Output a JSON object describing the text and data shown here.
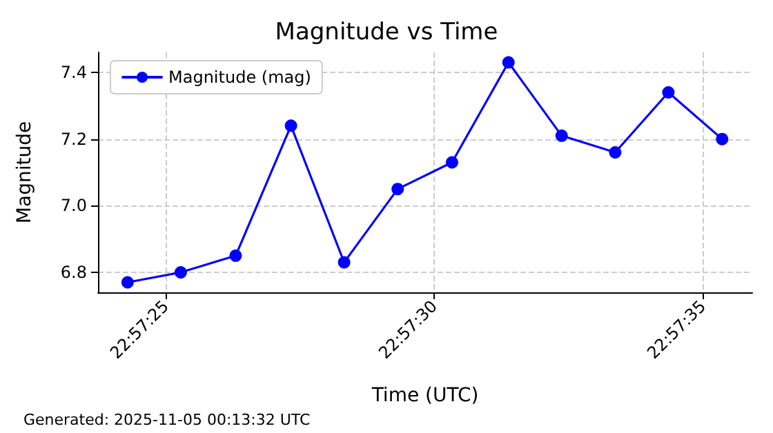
{
  "chart_data": {
    "type": "line",
    "title": "Magnitude vs Time",
    "xlabel": "Time (UTC)",
    "ylabel": "Magnitude",
    "annotations": [
      "Generated: 2025-11-05 00:13:32 UTC"
    ],
    "x": [
      22.956747,
      22.957022,
      22.957306,
      22.957592,
      22.957867,
      22.958144,
      22.958425,
      22.958717,
      22.958992,
      22.959269,
      22.959544,
      22.959822
    ],
    "series": [
      {
        "name": "Magnitude (mag)",
        "color": "#0000ff",
        "values": [
          6.77,
          6.8,
          6.85,
          7.24,
          6.83,
          7.05,
          7.13,
          7.43,
          7.21,
          7.16,
          7.34,
          7.2
        ]
      }
    ],
    "xlim": [
      22.956594,
      22.959978
    ],
    "xticks": [
      {
        "value": 22.956944,
        "label": "22:57:25"
      },
      {
        "value": 22.958333,
        "label": "22:57:30"
      },
      {
        "value": 22.959722,
        "label": "22:57:35"
      }
    ],
    "ylim": [
      6.74,
      7.46
    ],
    "yticks": [
      6.8,
      {
        "value": 7,
        "label": "7.0"
      },
      7.2,
      7.4
    ],
    "grid": true,
    "legend": "top left",
    "marker": "circle",
    "line_style": "solid"
  }
}
